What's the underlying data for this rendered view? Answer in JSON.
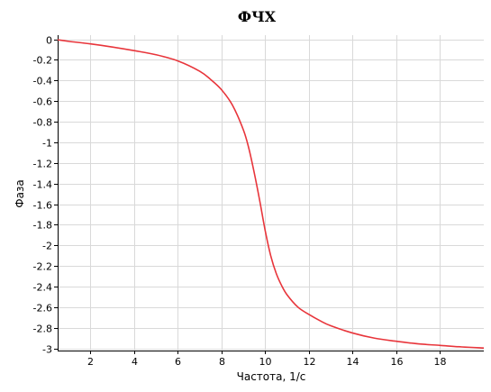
{
  "chart_data": {
    "type": "line",
    "title": "ФЧХ",
    "xlabel": "Частота, 1/с",
    "ylabel": "Фаза",
    "xlim": [
      0.5,
      20
    ],
    "ylim": [
      -3.02,
      0.04
    ],
    "grid": true,
    "legend": "none",
    "x_ticks": [
      2,
      4,
      6,
      8,
      10,
      12,
      14,
      16,
      18
    ],
    "x_tick_labels": [
      "2",
      "4",
      "6",
      "8",
      "10",
      "12",
      "14",
      "16",
      "18"
    ],
    "y_ticks": [
      0,
      -0.2,
      -0.4,
      -0.6,
      -0.8,
      -1,
      -1.2,
      -1.4,
      -1.6,
      -1.8,
      -2,
      -2.2,
      -2.4,
      -2.6,
      -2.8,
      -3
    ],
    "y_tick_labels": [
      "0",
      "-0.2",
      "-0.4",
      "-0.6",
      "-0.8",
      "-1",
      "-1.2",
      "-1.4",
      "-1.6",
      "-1.8",
      "-2",
      "-2.2",
      "-2.4",
      "-2.6",
      "-2.8",
      "-3"
    ],
    "series": [
      {
        "color": "#e8353b",
        "x": [
          0.5,
          1,
          2,
          3,
          4,
          5,
          6,
          7,
          7.5,
          8,
          8.5,
          9,
          9.25,
          9.5,
          9.75,
          10,
          10.25,
          10.5,
          10.75,
          11,
          11.5,
          12,
          12.5,
          13,
          14,
          15,
          16,
          17,
          18,
          19,
          20
        ],
        "y": [
          -0.005,
          -0.02,
          -0.045,
          -0.075,
          -0.11,
          -0.15,
          -0.21,
          -0.31,
          -0.39,
          -0.49,
          -0.64,
          -0.88,
          -1.06,
          -1.3,
          -1.57,
          -1.86,
          -2.1,
          -2.27,
          -2.39,
          -2.48,
          -2.6,
          -2.67,
          -2.73,
          -2.78,
          -2.85,
          -2.9,
          -2.93,
          -2.955,
          -2.97,
          -2.985,
          -2.995
        ]
      }
    ]
  },
  "colors": {
    "line": "#e8353b",
    "grid": "#d9d9d9",
    "axis": "#000000",
    "background": "#ffffff"
  }
}
